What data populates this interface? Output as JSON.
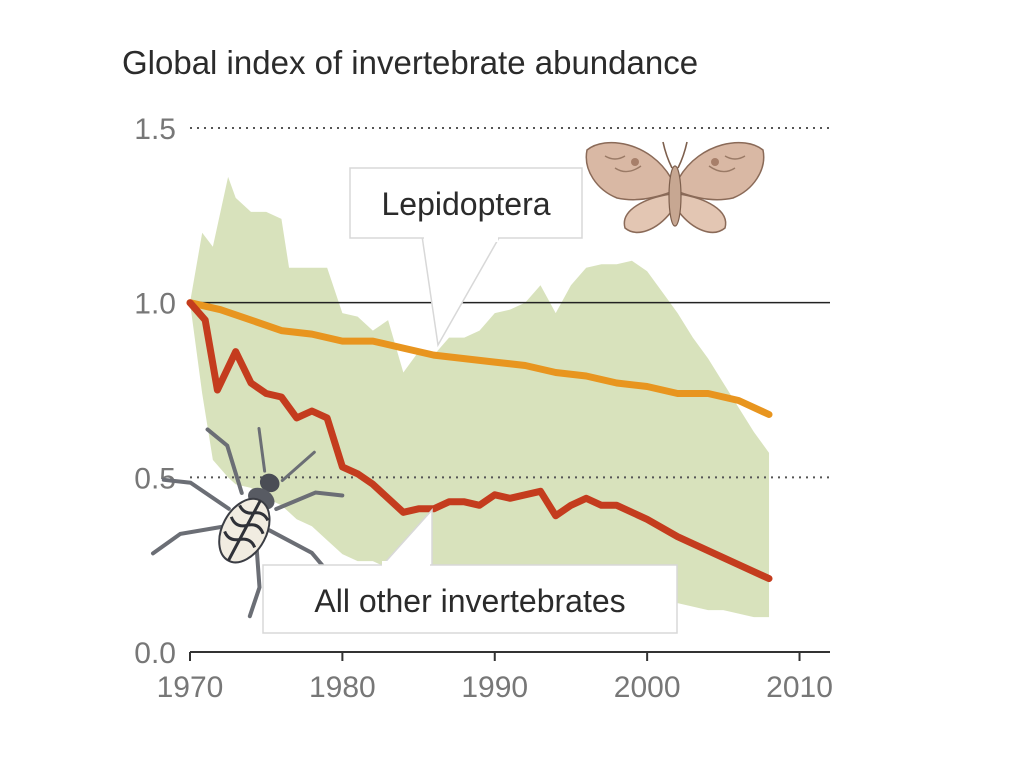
{
  "chart_data": {
    "type": "line",
    "title": "Global index of invertebrate abundance",
    "xlabel": "",
    "ylabel": "",
    "xlim": [
      1970,
      2012
    ],
    "ylim": [
      0.0,
      1.5
    ],
    "x_ticks": [
      1970,
      1980,
      1990,
      2000,
      2010
    ],
    "y_ticks": [
      {
        "value": 0.0,
        "label": "0.0",
        "style": "axis"
      },
      {
        "value": 0.5,
        "label": "0.5",
        "style": "dotted"
      },
      {
        "value": 1.0,
        "label": "1.0",
        "style": "solid"
      },
      {
        "value": 1.5,
        "label": "1.5",
        "style": "dotted"
      }
    ],
    "grid": false,
    "colors": {
      "lepidoptera": "#e8951f",
      "other": "#c43c1e",
      "band": "#d8e2bc",
      "axis": "#333333",
      "tick_label": "#777777"
    },
    "band": {
      "x": [
        1970,
        1970.8,
        1971.5,
        1972.5,
        1973.0,
        1974.0,
        1975.0,
        1976.0,
        1976.5,
        1977.0,
        1978.0,
        1979.0,
        1980.0,
        1981.0,
        1982.0,
        1983.0,
        1984.0,
        1985.0,
        1986.0,
        1987.0,
        1988.0,
        1989.0,
        1990.0,
        1991.0,
        1992.0,
        1993.0,
        1994.0,
        1995.0,
        1996.0,
        1997.0,
        1998.0,
        1999.0,
        2000.0,
        2001.0,
        2002.0,
        2003.0,
        2004.0,
        2005.0,
        2006.0,
        2007.0,
        2008.0
      ],
      "upper": [
        1.0,
        1.2,
        1.16,
        1.36,
        1.3,
        1.26,
        1.26,
        1.24,
        1.1,
        1.1,
        1.1,
        1.1,
        0.97,
        0.96,
        0.92,
        0.95,
        0.8,
        0.86,
        0.85,
        0.9,
        0.9,
        0.92,
        0.97,
        0.98,
        1.0,
        1.05,
        0.97,
        1.05,
        1.1,
        1.11,
        1.11,
        1.12,
        1.09,
        1.03,
        0.97,
        0.9,
        0.84,
        0.77,
        0.7,
        0.63,
        0.57
      ],
      "lower": [
        1.0,
        0.74,
        0.55,
        0.5,
        0.48,
        0.47,
        0.44,
        0.42,
        0.4,
        0.38,
        0.36,
        0.32,
        0.28,
        0.26,
        0.26,
        0.24,
        0.22,
        0.22,
        0.22,
        0.21,
        0.21,
        0.2,
        0.2,
        0.2,
        0.2,
        0.2,
        0.19,
        0.19,
        0.18,
        0.18,
        0.17,
        0.17,
        0.16,
        0.15,
        0.14,
        0.13,
        0.12,
        0.12,
        0.11,
        0.1,
        0.1
      ]
    },
    "series": [
      {
        "id": "lepidoptera",
        "x": [
          1970,
          1972,
          1974,
          1976,
          1978,
          1980,
          1982,
          1984,
          1986,
          1988,
          1990,
          1992,
          1994,
          1996,
          1998,
          2000,
          2002,
          2004,
          2006,
          2008
        ],
        "y": [
          1.0,
          0.98,
          0.95,
          0.92,
          0.91,
          0.89,
          0.89,
          0.87,
          0.85,
          0.84,
          0.83,
          0.82,
          0.8,
          0.79,
          0.77,
          0.76,
          0.74,
          0.74,
          0.72,
          0.68
        ]
      },
      {
        "id": "all-other-invertebrates",
        "x": [
          1970,
          1971,
          1971.8,
          1973,
          1974,
          1975,
          1976,
          1977,
          1978,
          1979,
          1980,
          1981,
          1982,
          1983,
          1984,
          1985,
          1986,
          1987,
          1988,
          1989,
          1990,
          1991,
          1992,
          1993,
          1994,
          1995,
          1996,
          1997,
          1998,
          2000,
          2002,
          2004,
          2006,
          2008
        ],
        "y": [
          1.0,
          0.95,
          0.75,
          0.86,
          0.77,
          0.74,
          0.73,
          0.67,
          0.69,
          0.67,
          0.53,
          0.51,
          0.48,
          0.44,
          0.4,
          0.41,
          0.41,
          0.43,
          0.43,
          0.42,
          0.45,
          0.44,
          0.45,
          0.46,
          0.39,
          0.42,
          0.44,
          0.42,
          0.42,
          0.38,
          0.33,
          0.29,
          0.25,
          0.21
        ]
      }
    ],
    "annotations": [
      {
        "id": "lepidoptera-label",
        "text": "Lepidoptera",
        "target": "lepidoptera"
      },
      {
        "id": "other-label",
        "text": "All other invertebrates",
        "target": "all-other-invertebrates"
      }
    ],
    "illustrations": [
      "moth-icon",
      "beetle-icon"
    ]
  }
}
